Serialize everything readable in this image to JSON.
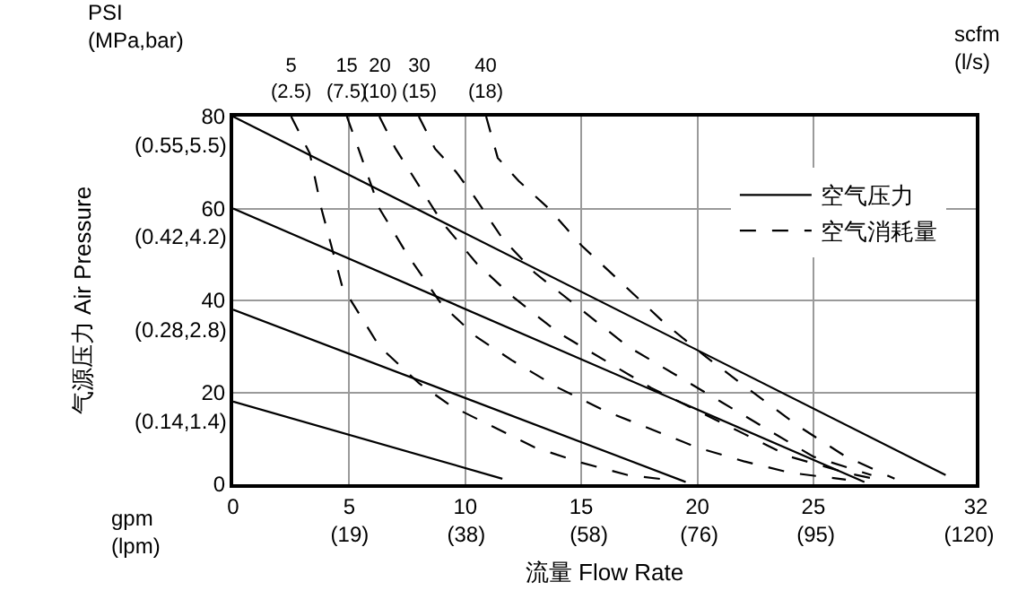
{
  "chart_data": {
    "type": "line",
    "xlabel": "流量 Flow Rate",
    "ylabel": "气源压力 Air Pressure",
    "ylim": [
      0,
      80
    ],
    "xlim": [
      0,
      32
    ],
    "xticks": [
      0,
      5,
      10,
      15,
      20,
      25,
      32
    ],
    "yticks": [
      0,
      20,
      40,
      60,
      80
    ],
    "x2lim": [
      0,
      121.1
    ],
    "x2ticks": [
      {
        "value": 19,
        "label": "(19)"
      },
      {
        "value": 38,
        "label": "(38)"
      },
      {
        "value": 58,
        "label": "(58)"
      },
      {
        "value": 76,
        "label": "(76)"
      },
      {
        "value": 95,
        "label": "(95)"
      },
      {
        "value": 120,
        "label": "(120)"
      }
    ],
    "grid": true,
    "legend": "top right",
    "series": [
      {
        "name": "空气压力",
        "color": "#000000",
        "line_style": "solid",
        "x": [
          0,
          30.7
        ],
        "values": [
          80,
          2
        ]
      },
      {
        "color": "#000000",
        "line_style": "solid",
        "x": [
          0,
          27.2
        ],
        "values": [
          60,
          0.5
        ]
      },
      {
        "color": "#000000",
        "line_style": "solid",
        "x": [
          0,
          19.5
        ],
        "values": [
          38,
          0.5
        ]
      },
      {
        "color": "#000000",
        "line_style": "solid",
        "x": [
          0,
          11.6
        ],
        "values": [
          18,
          1.2
        ]
      },
      {
        "name": "空气消耗量",
        "color": "#000000",
        "line_style": "dashed",
        "x": [
          2.5,
          3.3,
          3.8,
          4.7,
          6.3,
          8,
          9.4,
          11,
          13,
          15,
          17,
          19
        ],
        "values": [
          80,
          72,
          60,
          43,
          30,
          22,
          17,
          13,
          8,
          4.7,
          2,
          0.8
        ]
      },
      {
        "color": "#000000",
        "line_style": "dashed",
        "x": [
          4.9,
          5.4,
          6.3,
          7.5,
          9,
          10.5,
          12,
          14,
          16,
          18,
          20,
          22,
          24,
          26.4
        ],
        "values": [
          80,
          73,
          60,
          50,
          39,
          32,
          27,
          21,
          16,
          12,
          8,
          5,
          2.5,
          1
        ]
      },
      {
        "color": "#000000",
        "line_style": "dashed",
        "x": [
          6.3,
          7,
          8,
          9,
          10.5,
          12,
          14,
          16,
          18,
          20,
          22,
          24,
          26.4,
          27.8
        ],
        "values": [
          80,
          73,
          65,
          57,
          48,
          41,
          33,
          27,
          21,
          16,
          11,
          6,
          2.5,
          1
        ]
      },
      {
        "color": "#000000",
        "line_style": "dashed",
        "x": [
          8,
          8.7,
          9.6,
          10.4,
          11.6,
          13,
          15,
          17,
          19,
          21,
          23,
          25,
          27.5
        ],
        "values": [
          80,
          73,
          68,
          62.5,
          53.5,
          46,
          38,
          30,
          24,
          18,
          12,
          6,
          2
        ]
      },
      {
        "color": "#000000",
        "line_style": "dashed",
        "x": [
          10.9,
          11.4,
          12.3,
          13.6,
          15,
          16.7,
          18.6,
          20.3,
          22,
          24.4,
          26.4,
          28.5
        ],
        "values": [
          80,
          71,
          66,
          60,
          52,
          44,
          35,
          28,
          21.5,
          12.5,
          6,
          1.2
        ]
      }
    ],
    "annotations": [
      "PSI\n(MPa,bar)",
      "gpm\n(lpm)",
      "scfm\n(l/s)",
      "(0.14,1.4)",
      "(0.28,2.8)",
      "(0.42,4.2)",
      "(0.55,5.5)",
      {
        "text": "5\n(2.5)",
        "x": 2.5,
        "y": 80
      },
      {
        "text": "15\n(7.5)",
        "x": 4.9,
        "y": 80
      },
      {
        "text": "20\n(10)",
        "x": 6.3,
        "y": 80
      },
      {
        "text": "30\n(15)",
        "x": 8,
        "y": 80
      },
      {
        "text": "40\n(18)",
        "x": 10.9,
        "y": 80
      }
    ]
  }
}
